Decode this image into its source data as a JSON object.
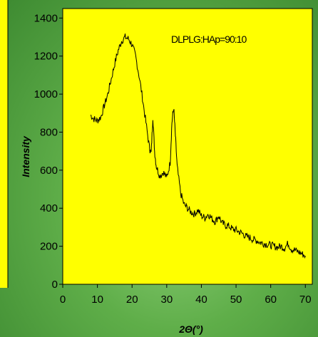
{
  "chart_data": {
    "type": "line",
    "ylabel": "Intensity",
    "xlabel": "2Θ(°)",
    "annotation": "DLPLG:HAp=90:10",
    "xlim": [
      0,
      72
    ],
    "ylim": [
      0,
      1450
    ],
    "xticks": [
      0,
      10,
      20,
      30,
      40,
      50,
      60,
      70
    ],
    "yticks": [
      0,
      200,
      400,
      600,
      800,
      1000,
      1200,
      1400
    ],
    "grid": false,
    "colors": {
      "plot_background": "#ffff00",
      "line": "#000000",
      "page_background": "#5fae49"
    },
    "series": [
      {
        "x": [
          8,
          9,
          10,
          11,
          12,
          13,
          14,
          15,
          16,
          17,
          18,
          19,
          20,
          21,
          22,
          23,
          24,
          25,
          25.5,
          26,
          26.5,
          27,
          28,
          29,
          30,
          31,
          31.5,
          32,
          32.5,
          33,
          34,
          35,
          36,
          37,
          38,
          39,
          40,
          41,
          42,
          43,
          44,
          45,
          46,
          47,
          48,
          49,
          50,
          51,
          52,
          53,
          54,
          55,
          56,
          57,
          58,
          59,
          60,
          61,
          62,
          63,
          64,
          65,
          66,
          67,
          68,
          69,
          70
        ],
        "y": [
          890,
          870,
          860,
          880,
          940,
          1000,
          1080,
          1160,
          1230,
          1280,
          1300,
          1290,
          1260,
          1200,
          1100,
          980,
          850,
          720,
          690,
          880,
          700,
          620,
          570,
          590,
          560,
          640,
          850,
          930,
          780,
          620,
          480,
          420,
          400,
          380,
          370,
          390,
          360,
          350,
          370,
          345,
          330,
          360,
          320,
          310,
          305,
          290,
          285,
          275,
          265,
          250,
          245,
          235,
          230,
          220,
          215,
          210,
          205,
          200,
          195,
          200,
          190,
          215,
          185,
          180,
          170,
          160,
          150
        ]
      }
    ]
  }
}
